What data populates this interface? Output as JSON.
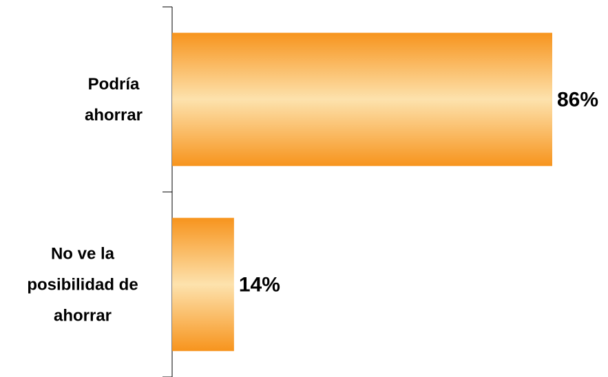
{
  "chart_data": {
    "type": "barh",
    "categories": [
      "Podría ahorrar",
      "No ve la posibilidad de ahorrar"
    ],
    "values": [
      86,
      14
    ],
    "value_labels": [
      "86%",
      "14%"
    ],
    "color": "#f7941d"
  }
}
